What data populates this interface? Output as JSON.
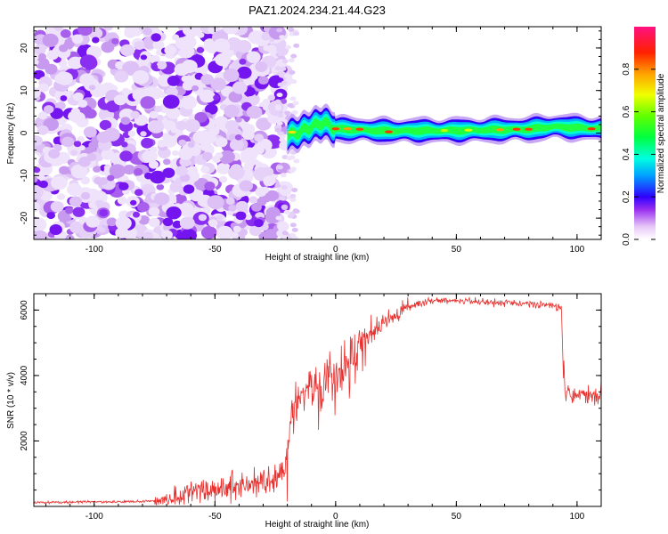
{
  "title": "PAZ1.2024.234.21.44.G23",
  "chart_data": [
    {
      "type": "heatmap",
      "title": "PAZ1.2024.234.21.44.G23",
      "xlabel": "Height of straight line (km)",
      "ylabel": "Frequency (Hz)",
      "xlim": [
        -125,
        110
      ],
      "ylim": [
        -25,
        25
      ],
      "x_ticks": [
        "-100",
        "-50",
        "0",
        "50",
        "100"
      ],
      "y_ticks": [
        "-20",
        "-10",
        "0",
        "10",
        "20"
      ],
      "noise_region_x": [
        -125,
        -20
      ],
      "signal_track": [
        {
          "x": -20,
          "y": -0.5
        },
        {
          "x": -15,
          "y": 0.2
        },
        {
          "x": -10,
          "y": 1.5
        },
        {
          "x": -5,
          "y": 2.5
        },
        {
          "x": 0,
          "y": 1.0
        },
        {
          "x": 20,
          "y": 0.5
        },
        {
          "x": 50,
          "y": 0.6
        },
        {
          "x": 80,
          "y": 0.9
        },
        {
          "x": 90,
          "y": 1.5
        },
        {
          "x": 110,
          "y": 1.0
        }
      ],
      "colorbar": {
        "label": "Normalized spectral amplitude",
        "ticks": [
          "0.0",
          "0.2",
          "0.4",
          "0.6",
          "0.8"
        ],
        "range": [
          0,
          1
        ]
      }
    },
    {
      "type": "line",
      "xlabel": "Height of straight line (km)",
      "ylabel": "SNR (10 * v/v)",
      "xlim": [
        -125,
        110
      ],
      "ylim": [
        0,
        6500
      ],
      "x_ticks": [
        "-100",
        "-50",
        "0",
        "50",
        "100"
      ],
      "y_ticks": [
        "2000",
        "4000",
        "6000"
      ],
      "color": "#e8302e",
      "trend": [
        {
          "x": -125,
          "y": 120
        },
        {
          "x": -80,
          "y": 150
        },
        {
          "x": -70,
          "y": 200
        },
        {
          "x": -60,
          "y": 450
        },
        {
          "x": -45,
          "y": 600
        },
        {
          "x": -30,
          "y": 750
        },
        {
          "x": -21,
          "y": 900
        },
        {
          "x": -18,
          "y": 3000
        },
        {
          "x": -15,
          "y": 3400
        },
        {
          "x": -5,
          "y": 3900
        },
        {
          "x": 0,
          "y": 4100
        },
        {
          "x": 5,
          "y": 4500
        },
        {
          "x": 10,
          "y": 4900
        },
        {
          "x": 20,
          "y": 5600
        },
        {
          "x": 30,
          "y": 6100
        },
        {
          "x": 40,
          "y": 6300
        },
        {
          "x": 60,
          "y": 6250
        },
        {
          "x": 80,
          "y": 6200
        },
        {
          "x": 94,
          "y": 6100
        },
        {
          "x": 95,
          "y": 3500
        },
        {
          "x": 100,
          "y": 3450
        },
        {
          "x": 110,
          "y": 3400
        }
      ]
    }
  ]
}
